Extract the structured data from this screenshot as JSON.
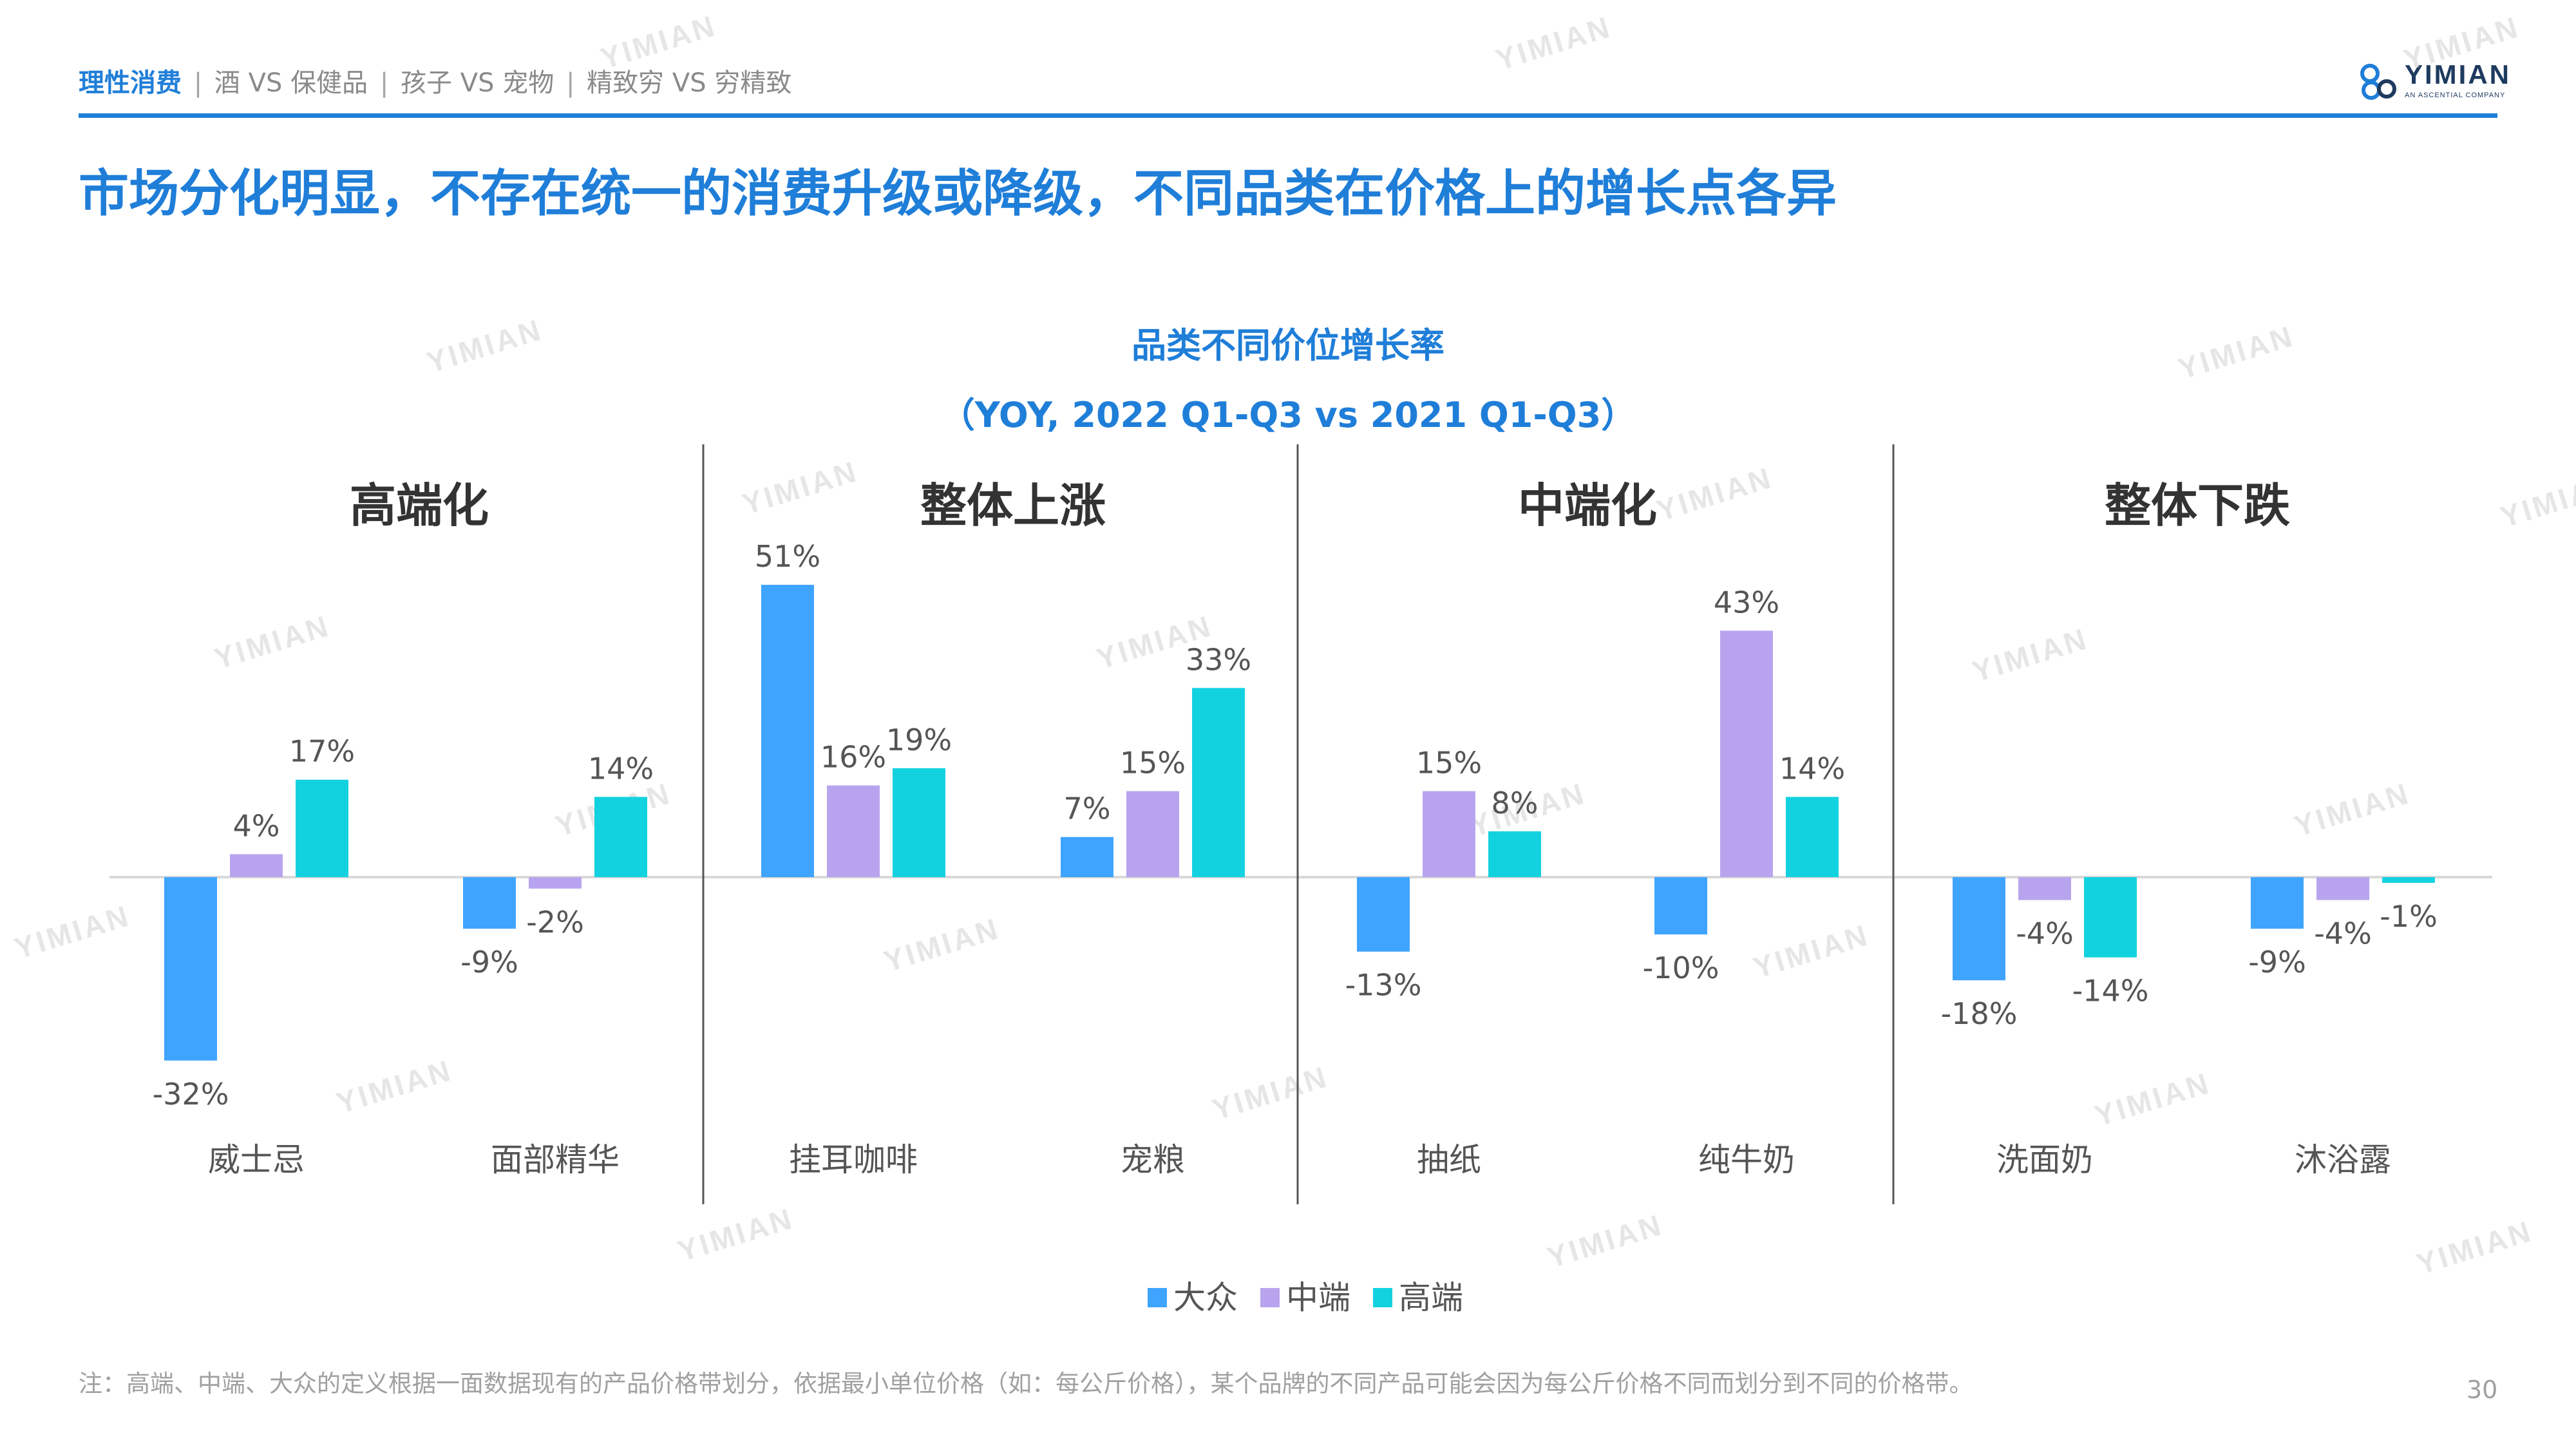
{
  "header": {
    "nav_active": "理性消费",
    "nav_items": [
      "酒 VS 保健品",
      "孩子 VS 宠物",
      "精致穷 VS 穷精致"
    ],
    "separator": "|"
  },
  "logo": {
    "name": "YIMIAN",
    "tagline": "AN ASCENTIAL COMPANY"
  },
  "slide_title": "市场分化明显，不存在统一的消费升级或降级，不同品类在价格上的增长点各异",
  "chart_data": {
    "type": "bar",
    "title": "品类不同价位增长率",
    "subtitle": "（YOY, 2022 Q1-Q3 vs 2021 Q1-Q3）",
    "groups": [
      {
        "label": "高端化",
        "categories": [
          "威士忌",
          "面部精华"
        ]
      },
      {
        "label": "整体上涨",
        "categories": [
          "挂耳咖啡",
          "宠粮"
        ]
      },
      {
        "label": "中端化",
        "categories": [
          "抽纸",
          "纯牛奶"
        ]
      },
      {
        "label": "整体下跌",
        "categories": [
          "洗面奶",
          "沐浴露"
        ]
      }
    ],
    "categories": [
      "威士忌",
      "面部精华",
      "挂耳咖啡",
      "宠粮",
      "抽纸",
      "纯牛奶",
      "洗面奶",
      "沐浴露"
    ],
    "series": [
      {
        "name": "大众",
        "color": "#3fa4ff",
        "values": [
          -32,
          -9,
          51,
          7,
          -13,
          -10,
          -18,
          -9
        ]
      },
      {
        "name": "中端",
        "color": "#b8a4ee",
        "values": [
          4,
          -2,
          16,
          15,
          15,
          43,
          -4,
          -4
        ]
      },
      {
        "name": "高端",
        "color": "#13d2e0",
        "values": [
          17,
          14,
          19,
          33,
          8,
          14,
          -14,
          -1
        ]
      }
    ],
    "value_suffix": "%",
    "ylim": [
      -35,
      55
    ],
    "legend_position": "bottom"
  },
  "footnote": "注：高端、中端、大众的定义根据一面数据现有的产品价格带划分，依据最小单位价格（如：每公斤价格），某个品牌的不同产品可能会因为每公斤价格不同而划分到不同的价格带。",
  "page_number": "30",
  "watermark_text": "YIMIAN"
}
